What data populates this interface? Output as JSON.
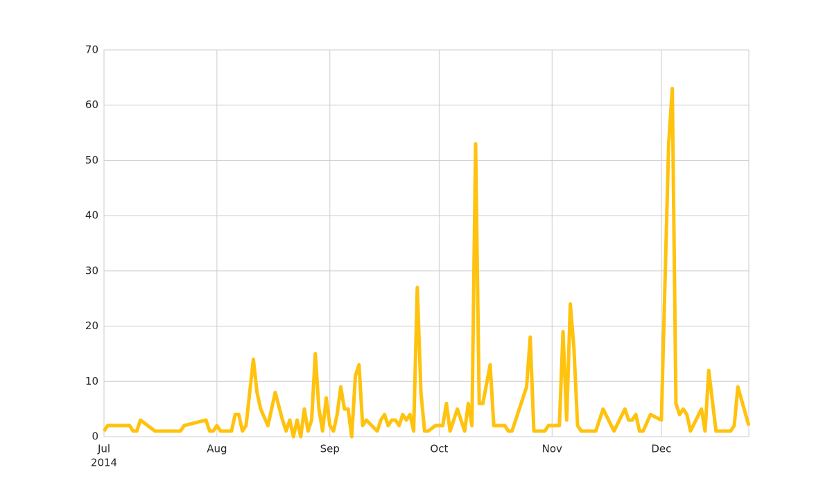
{
  "chart_data": {
    "type": "line",
    "x": [
      0,
      1,
      7,
      8,
      9,
      10,
      14,
      21,
      22,
      28,
      29,
      30,
      31,
      32,
      35,
      36,
      37,
      38,
      39,
      41,
      42,
      43,
      45,
      47,
      49,
      50,
      51,
      52,
      53,
      54,
      55,
      56,
      57,
      58,
      59,
      60,
      61,
      62,
      63,
      64,
      65,
      66,
      67,
      68,
      69,
      70,
      71,
      72,
      75,
      76,
      77,
      78,
      79,
      80,
      81,
      82,
      83,
      84,
      85,
      86,
      87,
      88,
      89,
      91,
      93,
      94,
      95,
      97,
      99,
      100,
      101,
      102,
      103,
      104,
      106,
      107,
      110,
      111,
      112,
      116,
      117,
      118,
      121,
      122,
      125,
      126,
      127,
      128,
      129,
      130,
      131,
      135,
      137,
      140,
      143,
      144,
      145,
      146,
      147,
      148,
      150,
      153,
      155,
      156,
      157,
      158,
      159,
      160,
      161,
      164,
      165,
      166,
      168,
      172,
      173,
      174,
      177
    ],
    "series": [
      {
        "color": "#ffc20e",
        "values": [
          1,
          2,
          2,
          1,
          1,
          3,
          1,
          1,
          2,
          3,
          1,
          1,
          2,
          1,
          1,
          4,
          4,
          1,
          2,
          14,
          8,
          5,
          2,
          8,
          3,
          1,
          3,
          0,
          3,
          0,
          5,
          1,
          3,
          15,
          5,
          1,
          7,
          2,
          1,
          4,
          9,
          5,
          5,
          0,
          11,
          13,
          2,
          3,
          1,
          3,
          4,
          2,
          3,
          3,
          2,
          4,
          3,
          4,
          1,
          27,
          8,
          1,
          1,
          2,
          2,
          6,
          1,
          5,
          1,
          6,
          2,
          53,
          6,
          6,
          13,
          2,
          2,
          1,
          1,
          9,
          18,
          1,
          1,
          2,
          2,
          19,
          3,
          24,
          16,
          2,
          1,
          1,
          5,
          1,
          5,
          3,
          3,
          4,
          1,
          1,
          4,
          3,
          53,
          63,
          6,
          4,
          5,
          4,
          1,
          5,
          1,
          12,
          1,
          1,
          2,
          9,
          2
        ]
      }
    ],
    "xlim": [
      0,
      177
    ],
    "xticks": [
      {
        "value": 0,
        "label": "Jul"
      },
      {
        "value": 31,
        "label": "Aug"
      },
      {
        "value": 62,
        "label": "Sep"
      },
      {
        "value": 92,
        "label": "Oct"
      },
      {
        "value": 123,
        "label": "Nov"
      },
      {
        "value": 153,
        "label": "Dec"
      }
    ],
    "x_year_label": "2014",
    "ylim": [
      0,
      70
    ],
    "yticks": [
      0,
      10,
      20,
      30,
      40,
      50,
      60,
      70
    ],
    "grid": true
  }
}
